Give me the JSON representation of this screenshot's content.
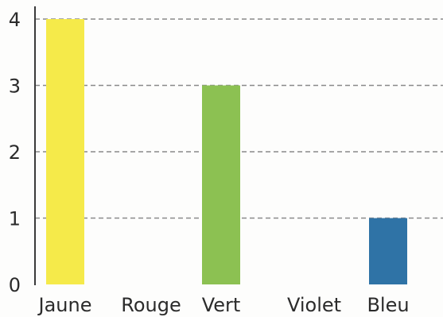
{
  "chart_data": {
    "type": "bar",
    "categories": [
      "Jaune",
      "Rouge",
      "Vert",
      "Violet",
      "Bleu"
    ],
    "values": [
      4,
      0,
      3,
      0,
      1
    ],
    "colors": [
      "#f5ea4a",
      "#e8402f",
      "#8cc152",
      "#8a4fa3",
      "#2f73a6"
    ],
    "title": "",
    "xlabel": "",
    "ylabel": "",
    "ylim": [
      0,
      4
    ],
    "yticks": [
      "0",
      "1",
      "2",
      "3",
      "4"
    ],
    "grid": true,
    "grid_style": "dashed",
    "legend": "none"
  }
}
